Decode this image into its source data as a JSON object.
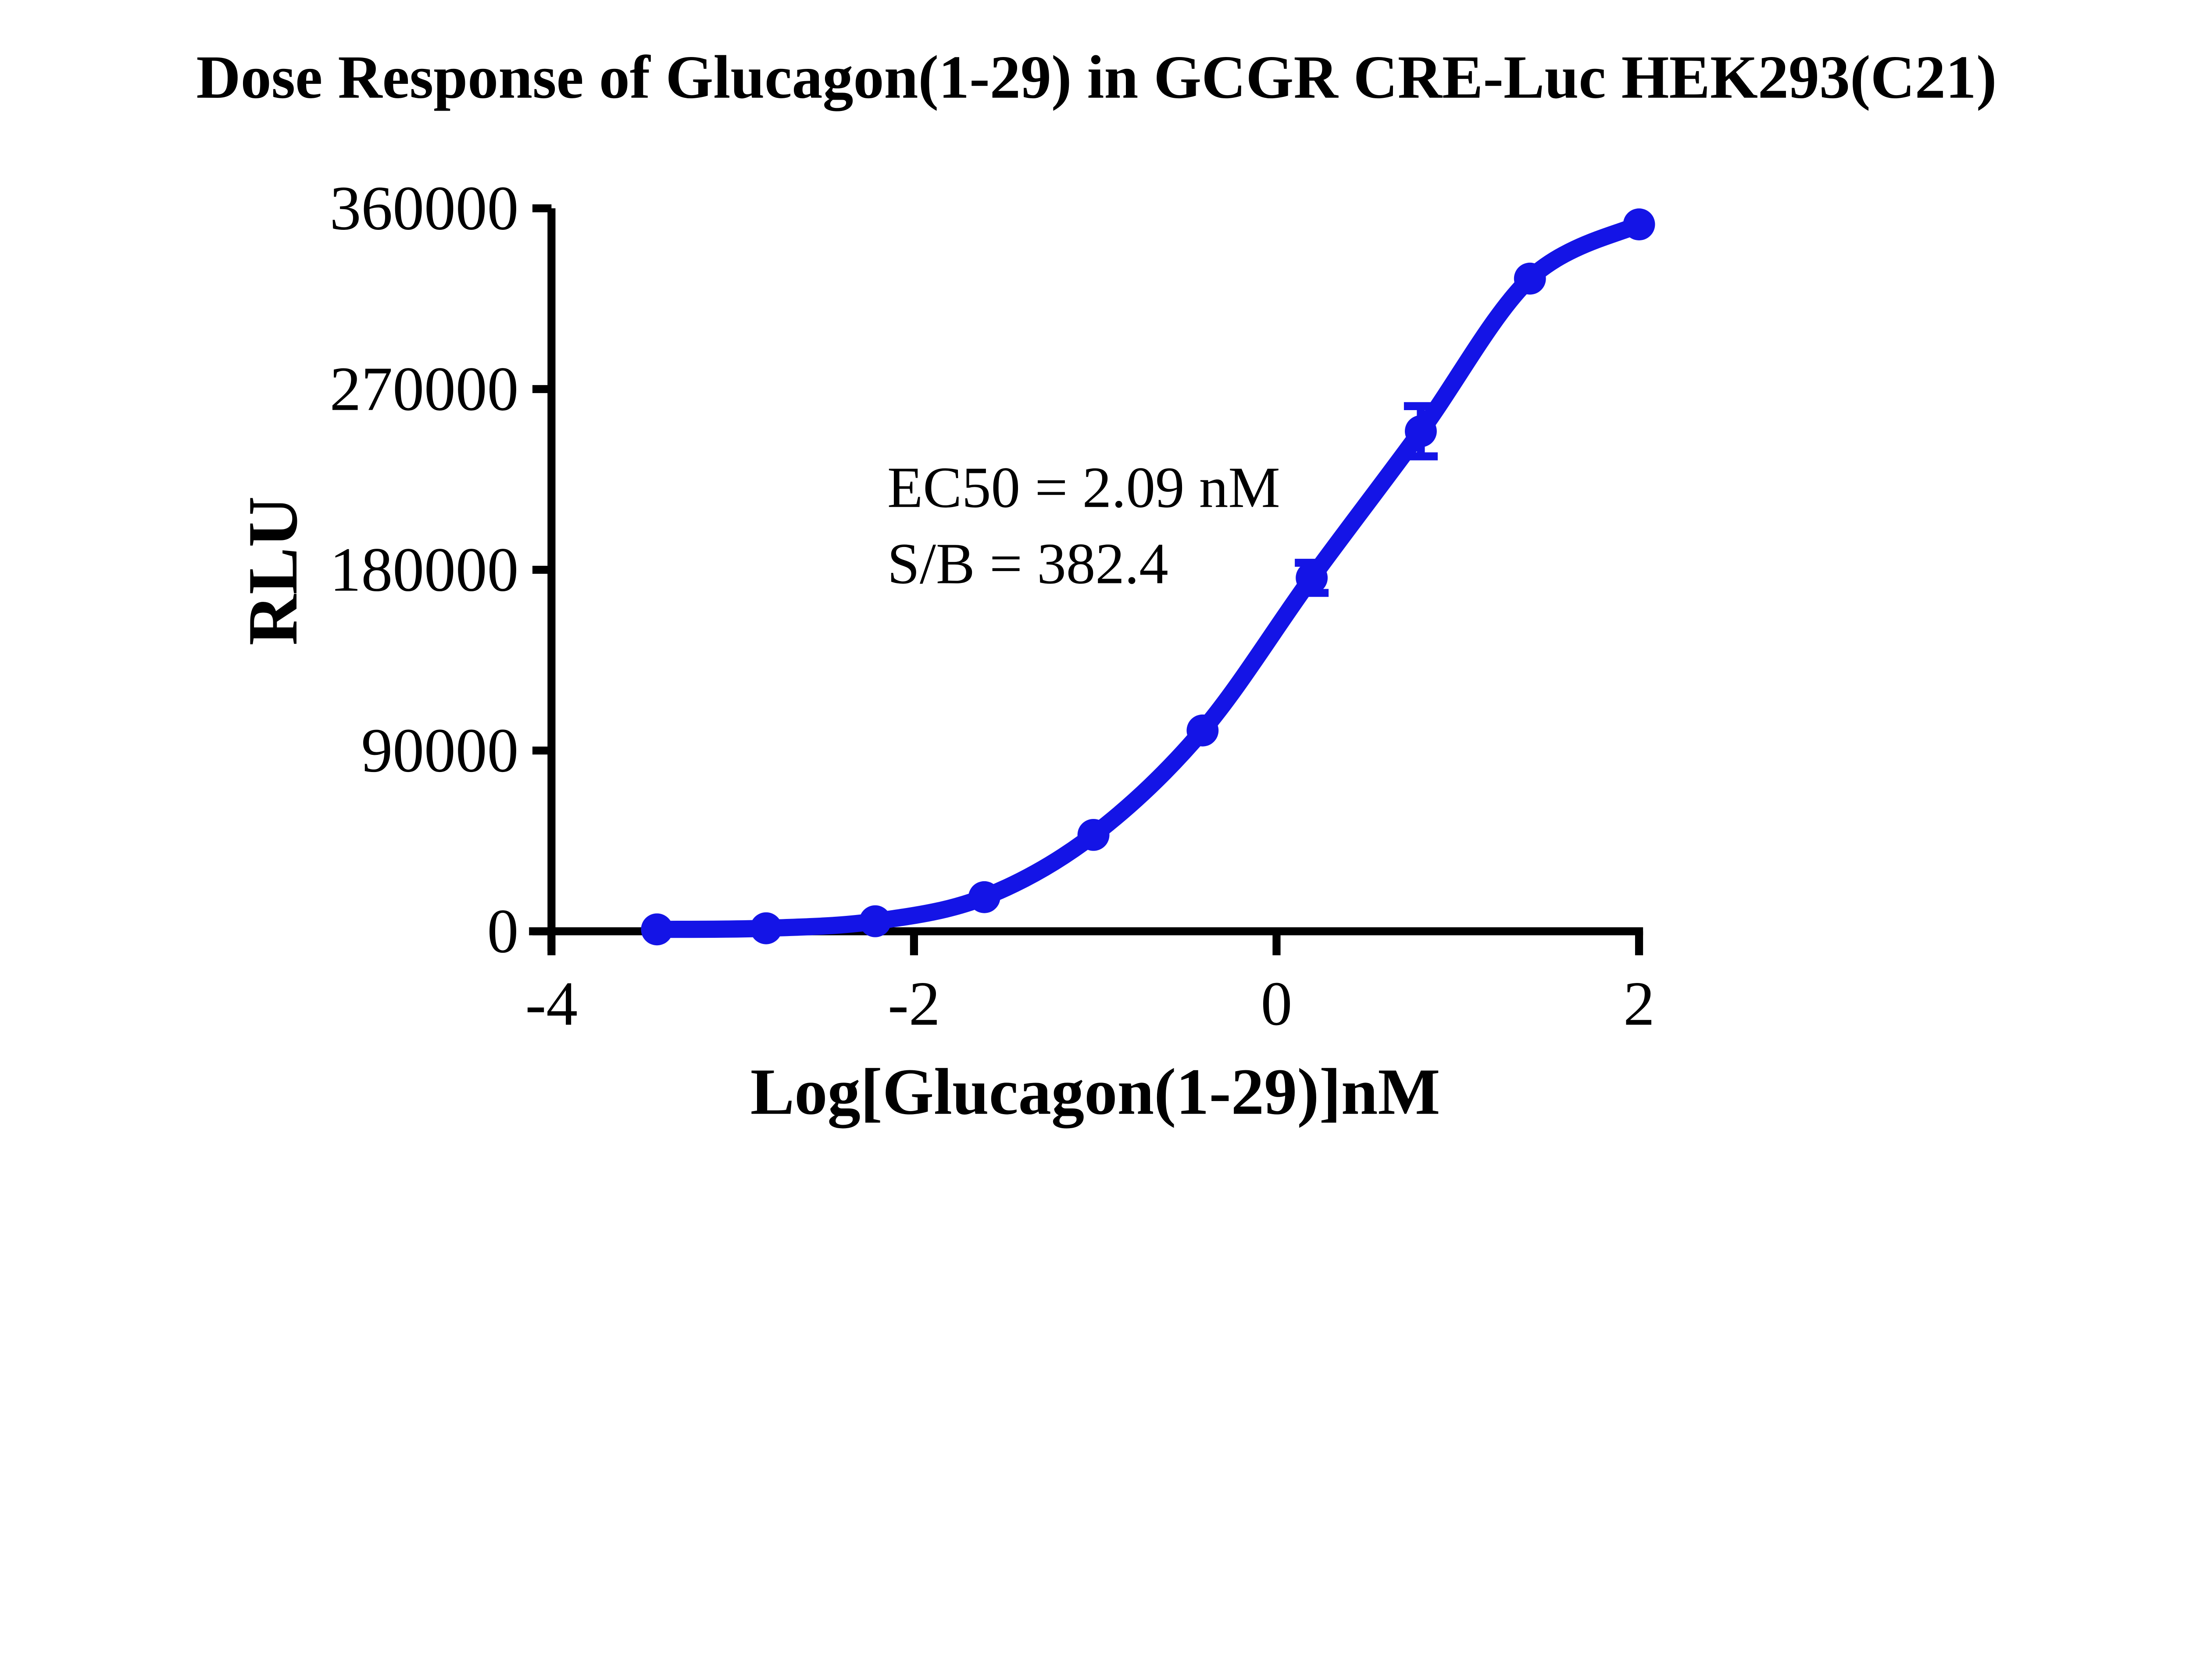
{
  "chart_data": {
    "type": "scatter",
    "title": "Dose Response of Glucagon(1-29) in GCGR CRE-Luc HEK293(C21)",
    "xlabel": "Log[Glucagon(1-29)]nM",
    "ylabel": "RLU",
    "xlim": [
      -4,
      2
    ],
    "ylim": [
      0,
      360000
    ],
    "x_ticks": [
      -4,
      -2,
      0,
      2
    ],
    "y_ticks": [
      0,
      90000,
      180000,
      270000,
      360000
    ],
    "grid": false,
    "legend_position": "none",
    "series": [
      {
        "marker": "circle",
        "curve": "sigmoidal dose-response",
        "color": "#1414E6",
        "x_log_nM": [
          -3.418,
          -2.816,
          -2.214,
          -1.612,
          -1.01,
          -0.408,
          0.194,
          0.796,
          1.398,
          2.0
        ],
        "y_rlu": [
          950,
          1500,
          5000,
          17000,
          48000,
          100000,
          176000,
          249000,
          325000,
          352000
        ],
        "y_sd": [
          null,
          null,
          null,
          null,
          null,
          null,
          7500,
          12500,
          null,
          null
        ]
      }
    ],
    "annotations": [
      "EC50 = 2.09 nM",
      "S/B = 382.4"
    ],
    "ec50_nM": 2.09,
    "signal_to_background": 382.4,
    "colors": {
      "series": "#1414E6",
      "axis": "#000000",
      "text": "#000000",
      "background": "#FFFFFF"
    }
  }
}
